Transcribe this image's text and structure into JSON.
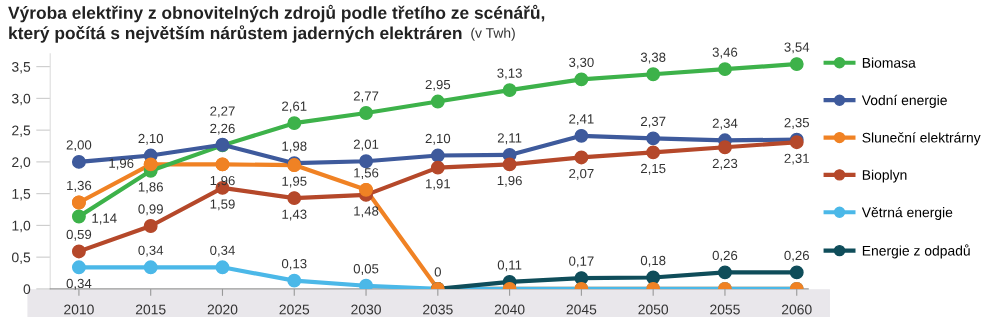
{
  "chart_data": {
    "type": "line",
    "title": "Výroba elektřiny z obnovitelných zdrojů podle třetího ze scénářů,\nkterý počítá s největším nárůstem jaderných elektráren",
    "subtitle": "(v Twh)",
    "categories": [
      "2010",
      "2015",
      "2020",
      "2025",
      "2030",
      "2035",
      "2040",
      "2045",
      "2050",
      "2055",
      "2060"
    ],
    "ylim": [
      0,
      3.7
    ],
    "yticks": [
      {
        "value": 0,
        "label": "0"
      },
      {
        "value": 0.5,
        "label": "0,5"
      },
      {
        "value": 1,
        "label": "1,0"
      },
      {
        "value": 1.5,
        "label": "1,5"
      },
      {
        "value": 2,
        "label": "2,0"
      },
      {
        "value": 2.5,
        "label": "2,5"
      },
      {
        "value": 3,
        "label": "3,0"
      },
      {
        "value": 3.5,
        "label": "3,5"
      }
    ],
    "grid": false,
    "legend": "right",
    "marker": "circle",
    "line_style": "solid",
    "series": [
      {
        "name": "Biomasa",
        "color": "#3db24a",
        "values": [
          1.14,
          1.86,
          2.26,
          2.61,
          2.77,
          2.95,
          3.13,
          3.3,
          3.38,
          3.46,
          3.54
        ],
        "value_labels": [
          "1,14",
          "1,86",
          "2,26",
          "2,61",
          "2,77",
          "2,95",
          "3,13",
          "3,30",
          "3,38",
          "3,46",
          "3,54"
        ]
      },
      {
        "name": "Vodní energie",
        "color": "#3e5a9c",
        "values": [
          2.0,
          2.1,
          2.27,
          1.98,
          2.01,
          2.1,
          2.11,
          2.41,
          2.37,
          2.34,
          2.35
        ],
        "value_labels": [
          "2,00",
          "2,10",
          "2,27",
          "1,98",
          "2,01",
          "2,10",
          "2,11",
          "2,41",
          "2,37",
          "2,34",
          "2,35"
        ]
      },
      {
        "name": "Sluneční elektrárny",
        "color": "#f08224",
        "values": [
          1.36,
          1.96,
          1.96,
          1.95,
          1.56,
          0,
          0,
          0,
          0,
          0,
          0
        ],
        "value_labels": [
          "1,36",
          "1,96",
          "1,96",
          "1,95",
          "1,56",
          "0",
          null,
          null,
          null,
          null,
          null
        ]
      },
      {
        "name": "Bioplyn",
        "color": "#b5482a",
        "values": [
          0.59,
          0.99,
          1.59,
          1.43,
          1.48,
          1.91,
          1.96,
          2.07,
          2.15,
          2.23,
          2.31
        ],
        "value_labels": [
          "0,59",
          "0,99",
          "1,59",
          "1,43",
          "1,48",
          "1,91",
          "1,96",
          "2,07",
          "2,15",
          "2,23",
          "2,31"
        ]
      },
      {
        "name": "Větrná energie",
        "color": "#4bb8e8",
        "values": [
          0.34,
          0.34,
          0.34,
          0.13,
          0.05,
          0,
          0,
          0,
          0,
          0,
          0
        ],
        "value_labels": [
          "0,34",
          "0,34",
          "0,34",
          "0,13",
          "0,05",
          null,
          null,
          null,
          null,
          null,
          null
        ]
      },
      {
        "name": "Energie z odpadů",
        "color": "#0f4d5a",
        "values": [
          null,
          null,
          null,
          null,
          null,
          0,
          0.11,
          0.17,
          0.18,
          0.26,
          0.26
        ],
        "value_labels": [
          null,
          null,
          null,
          null,
          null,
          null,
          "0,11",
          "0,17",
          "0,18",
          "0,26",
          "0,26"
        ]
      }
    ]
  }
}
